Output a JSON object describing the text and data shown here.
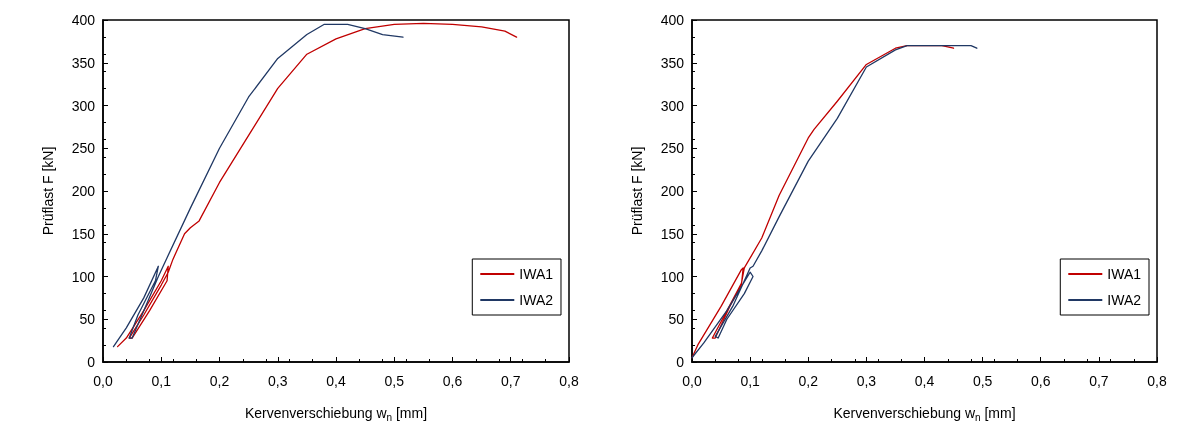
{
  "chart_data": [
    {
      "type": "line",
      "xlabel": "Kervenverschiebung w$_{n}$ [mm]",
      "ylabel": "Prüflast F [kN]",
      "xlim": [
        0,
        0.8
      ],
      "ylim": [
        0,
        400
      ],
      "xticks": [
        {
          "value": 0,
          "label": "0,0"
        },
        {
          "value": 0.1,
          "label": "0,1"
        },
        {
          "value": 0.2,
          "label": "0,2"
        },
        {
          "value": 0.3,
          "label": "0,3"
        },
        {
          "value": 0.4,
          "label": "0,4"
        },
        {
          "value": 0.5,
          "label": "0,5"
        },
        {
          "value": 0.6,
          "label": "0,6"
        },
        {
          "value": 0.7,
          "label": "0,7"
        },
        {
          "value": 0.8,
          "label": "0,8"
        }
      ],
      "yticks": [
        0,
        50,
        100,
        150,
        200,
        250,
        300,
        350,
        400
      ],
      "grid": false,
      "legend": "bottom right",
      "marker": "none",
      "line_style": "solid",
      "series": [
        {
          "name": "IWA1",
          "color": "#c00000",
          "x": [
            0.025,
            0.04,
            0.07,
            0.1,
            0.112,
            0.11,
            0.08,
            0.05,
            0.045,
            0.07,
            0.1,
            0.112,
            0.12,
            0.14,
            0.15,
            0.165,
            0.2,
            0.25,
            0.3,
            0.35,
            0.4,
            0.45,
            0.5,
            0.55,
            0.6,
            0.65,
            0.69,
            0.71
          ],
          "values": [
            18,
            28,
            60,
            95,
            112,
            95,
            60,
            28,
            28,
            55,
            90,
            105,
            120,
            150,
            157,
            165,
            210,
            265,
            320,
            360,
            378,
            390,
            395,
            396,
            395,
            392,
            387,
            380
          ]
        },
        {
          "name": "IWA2",
          "color": "#203864",
          "x": [
            0.018,
            0.04,
            0.07,
            0.095,
            0.09,
            0.06,
            0.045,
            0.05,
            0.07,
            0.095,
            0.11,
            0.15,
            0.2,
            0.25,
            0.3,
            0.35,
            0.38,
            0.42,
            0.45,
            0.48,
            0.515
          ],
          "values": [
            18,
            40,
            75,
            112,
            95,
            55,
            28,
            28,
            60,
            100,
            122,
            180,
            250,
            310,
            355,
            383,
            395,
            395,
            390,
            383,
            380
          ]
        }
      ]
    },
    {
      "type": "line",
      "xlabel": "Kervenverschiebung w$_{n}$ [mm]",
      "ylabel": "Prüflast F [kN]",
      "xlim": [
        0,
        0.8
      ],
      "ylim": [
        0,
        400
      ],
      "xticks": [
        {
          "value": 0,
          "label": "0,0"
        },
        {
          "value": 0.1,
          "label": "0,1"
        },
        {
          "value": 0.2,
          "label": "0,2"
        },
        {
          "value": 0.3,
          "label": "0,3"
        },
        {
          "value": 0.4,
          "label": "0,4"
        },
        {
          "value": 0.5,
          "label": "0,5"
        },
        {
          "value": 0.6,
          "label": "0,6"
        },
        {
          "value": 0.7,
          "label": "0,7"
        },
        {
          "value": 0.8,
          "label": "0,8"
        }
      ],
      "yticks": [
        0,
        50,
        100,
        150,
        200,
        250,
        300,
        350,
        400
      ],
      "grid": false,
      "legend": "bottom right",
      "marker": "none",
      "line_style": "solid",
      "series": [
        {
          "name": "IWA1",
          "color": "#c00000",
          "x": [
            0,
            0.01,
            0.05,
            0.085,
            0.088,
            0.085,
            0.065,
            0.04,
            0.035,
            0.06,
            0.085,
            0.09,
            0.12,
            0.15,
            0.2,
            0.21,
            0.25,
            0.3,
            0.35,
            0.37,
            0.43,
            0.45
          ],
          "values": [
            5,
            20,
            65,
            108,
            110,
            90,
            65,
            28,
            28,
            60,
            92,
            110,
            145,
            195,
            262,
            272,
            305,
            348,
            367,
            370,
            370,
            367
          ]
        },
        {
          "name": "IWA2",
          "color": "#203864",
          "x": [
            0,
            0.02,
            0.06,
            0.1,
            0.105,
            0.09,
            0.06,
            0.045,
            0.04,
            0.07,
            0.1,
            0.105,
            0.12,
            0.15,
            0.2,
            0.25,
            0.3,
            0.35,
            0.37,
            0.48,
            0.49
          ],
          "values": [
            5,
            22,
            60,
            105,
            100,
            80,
            50,
            28,
            30,
            65,
            110,
            112,
            130,
            170,
            235,
            285,
            345,
            365,
            370,
            370,
            367
          ]
        }
      ]
    }
  ]
}
